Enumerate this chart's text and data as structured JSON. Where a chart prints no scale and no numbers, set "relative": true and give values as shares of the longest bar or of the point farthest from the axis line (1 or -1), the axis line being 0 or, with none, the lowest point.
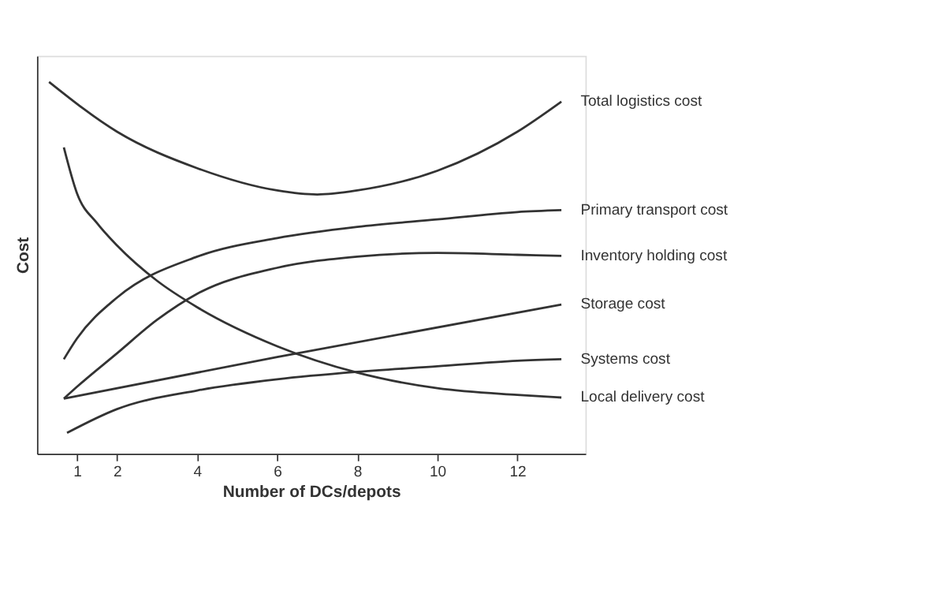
{
  "chart_data": {
    "type": "line",
    "xlabel": "Number of DCs/depots",
    "ylabel": "Cost",
    "relative": true,
    "xlim": [
      0,
      13.7
    ],
    "xticks": [
      1,
      2,
      4,
      6,
      8,
      10,
      12
    ],
    "grid": false,
    "legend": false,
    "marker": "none",
    "line_style": "solid",
    "series": [
      {
        "name": "Total logistics cost",
        "color": "#333333",
        "x": [
          0.3,
          2,
          4,
          6,
          7,
          8,
          10,
          12,
          13.1
        ],
        "values": [
          1.0,
          0.866,
          0.768,
          0.708,
          0.697,
          0.708,
          0.761,
          0.866,
          0.947
        ]
      },
      {
        "name": "Primary transport cost",
        "color": "#333333",
        "x": [
          0.67,
          1,
          2,
          4,
          6,
          8,
          10,
          12,
          13.1
        ],
        "values": [
          0.254,
          0.31,
          0.42,
          0.53,
          0.58,
          0.61,
          0.63,
          0.65,
          0.655
        ]
      },
      {
        "name": "Inventory holding cost",
        "color": "#333333",
        "x": [
          0.67,
          1,
          2,
          3,
          4,
          6,
          8,
          10,
          12,
          13.1
        ],
        "values": [
          0.148,
          0.18,
          0.27,
          0.36,
          0.43,
          0.5,
          0.53,
          0.54,
          0.535,
          0.532
        ]
      },
      {
        "name": "Storage cost",
        "color": "#333333",
        "x": [
          0.67,
          6,
          13.1
        ],
        "values": [
          0.148,
          0.26,
          0.401
        ]
      },
      {
        "name": "Systems cost",
        "color": "#333333",
        "x": [
          0.75,
          2,
          4,
          6,
          8,
          10,
          12,
          13.1
        ],
        "values": [
          0.056,
          0.12,
          0.17,
          0.2,
          0.22,
          0.235,
          0.25,
          0.254
        ]
      },
      {
        "name": "Local delivery cost",
        "color": "#333333",
        "x": [
          0.67,
          1,
          1.5,
          2,
          3,
          4,
          6,
          8,
          10,
          12,
          13.1
        ],
        "values": [
          0.824,
          0.7,
          0.62,
          0.56,
          0.465,
          0.394,
          0.289,
          0.218,
          0.176,
          0.158,
          0.151
        ]
      }
    ]
  }
}
